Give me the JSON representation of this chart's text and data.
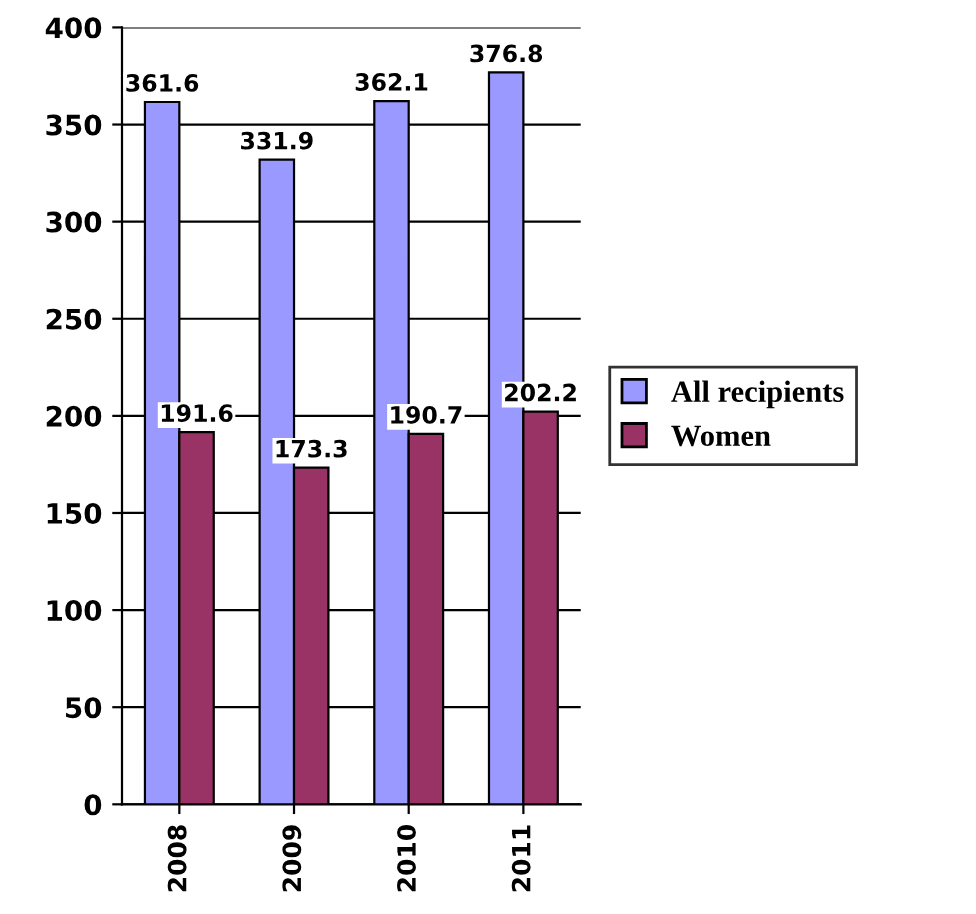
{
  "chart_data": {
    "type": "bar",
    "categories": [
      "2008",
      "2009",
      "2010",
      "2011"
    ],
    "series": [
      {
        "name": "All recipients",
        "color": "#9999ff",
        "values": [
          361.6,
          331.9,
          362.1,
          376.8
        ]
      },
      {
        "name": "Women",
        "color": "#993366",
        "values": [
          191.6,
          173.3,
          190.7,
          202.2
        ]
      }
    ],
    "ylim": [
      0,
      400
    ],
    "yticks": [
      0,
      50,
      100,
      150,
      200,
      250,
      300,
      350,
      400
    ],
    "grid": "y",
    "legend": "right",
    "data_labels": true
  }
}
